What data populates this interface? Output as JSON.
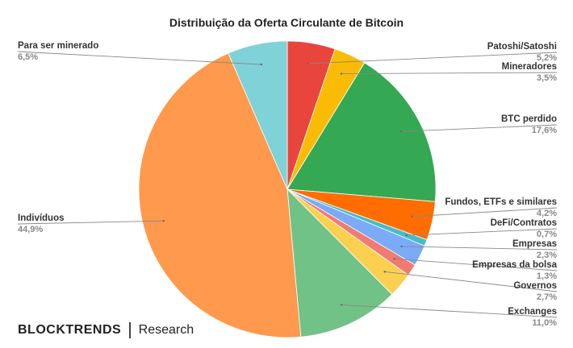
{
  "chart_data": {
    "type": "pie",
    "title": "Distribuição da Oferta Circulante de Bitcoin",
    "slices": [
      {
        "label": "Patoshi/Satoshi",
        "value_text": "5,2%",
        "value": 5.2,
        "color": "#e8453c"
      },
      {
        "label": "Mineradores",
        "value_text": "3,5%",
        "value": 3.5,
        "color": "#f9bb04"
      },
      {
        "label": "BTC perdido",
        "value_text": "17,6%",
        "value": 17.6,
        "color": "#34a853"
      },
      {
        "label": "Fundos, ETFs e similares",
        "value_text": "4,2%",
        "value": 4.2,
        "color": "#ff6d01"
      },
      {
        "label": "DeFi/Contratos",
        "value_text": "0,7%",
        "value": 0.7,
        "color": "#46bdc6"
      },
      {
        "label": "Empresas",
        "value_text": "2,3%",
        "value": 2.3,
        "color": "#7baaf7"
      },
      {
        "label": "Empresas da bolsa",
        "value_text": "1,3%",
        "value": 1.3,
        "color": "#f07b72"
      },
      {
        "label": "Governos",
        "value_text": "2,7%",
        "value": 2.7,
        "color": "#fcd04f"
      },
      {
        "label": "Exchanges",
        "value_text": "11,0%",
        "value": 11.0,
        "color": "#71c287"
      },
      {
        "label": "Indivíduos",
        "value_text": "44,9%",
        "value": 44.9,
        "color": "#ff994d"
      },
      {
        "label": "Para ser minerado",
        "value_text": "6,5%",
        "value": 6.5,
        "color": "#7ed2d8"
      }
    ]
  },
  "branding": {
    "name": "BLOCKTRENDS",
    "sub": "Research"
  }
}
